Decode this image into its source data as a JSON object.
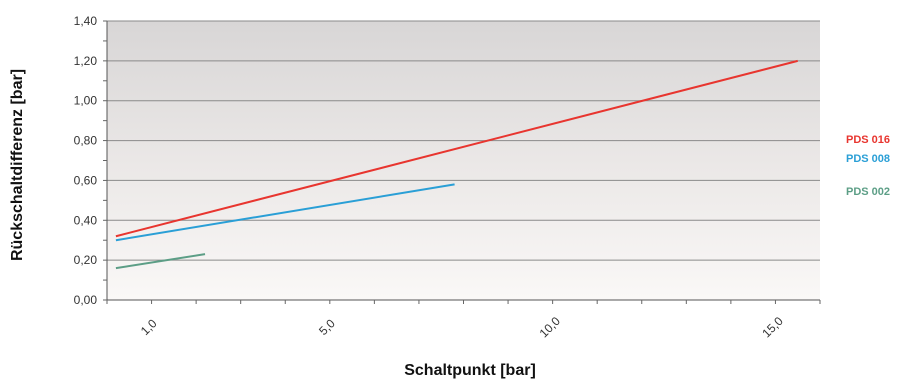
{
  "chart_data": {
    "type": "line",
    "title": "",
    "xlabel": "Schaltpunkt [bar]",
    "ylabel": "Rückschaltdifferenz [bar]",
    "xlim": [
      0.0,
      16.0
    ],
    "ylim": [
      0.0,
      1.4
    ],
    "x_ticks": [
      {
        "value": 1.0,
        "label": "1,0"
      },
      {
        "value": 5.0,
        "label": "5,0"
      },
      {
        "value": 10.0,
        "label": "10,0"
      },
      {
        "value": 15.0,
        "label": "15,0"
      }
    ],
    "y_ticks": [
      {
        "value": 0.0,
        "label": "0,00"
      },
      {
        "value": 0.2,
        "label": "0,20"
      },
      {
        "value": 0.4,
        "label": "0,40"
      },
      {
        "value": 0.6,
        "label": "0,60"
      },
      {
        "value": 0.8,
        "label": "0,80"
      },
      {
        "value": 1.0,
        "label": "1,00"
      },
      {
        "value": 1.2,
        "label": "1,20"
      },
      {
        "value": 1.4,
        "label": "1,40"
      }
    ],
    "grid": true,
    "legend_position": "right",
    "series": [
      {
        "name": "PDS 016",
        "color": "#e8352f",
        "x": [
          0.2,
          15.5
        ],
        "y": [
          0.32,
          1.2
        ]
      },
      {
        "name": "PDS 008",
        "color": "#2a9fd6",
        "x": [
          0.2,
          7.8
        ],
        "y": [
          0.3,
          0.58
        ]
      },
      {
        "name": "PDS 002",
        "color": "#5c9e86",
        "x": [
          0.2,
          2.2
        ],
        "y": [
          0.16,
          0.23
        ]
      }
    ]
  }
}
